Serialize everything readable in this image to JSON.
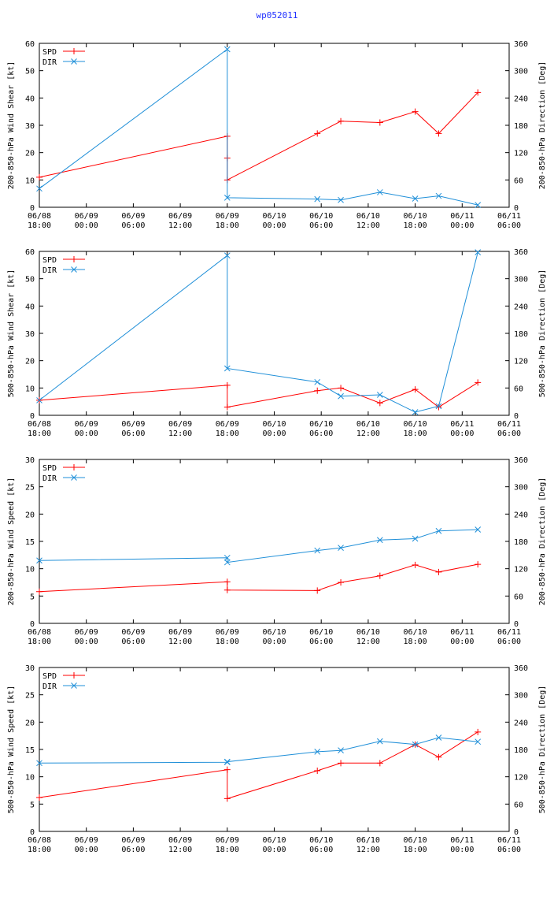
{
  "title": "wp052011",
  "colors": {
    "spd": "#ff0000",
    "dir": "#1f8fd8",
    "axis": "#000000"
  },
  "chart_data": [
    {
      "type": "line",
      "ylabel_left": "200-850-hPa Wind Shear [kt]",
      "ylabel_right": "200-850-hPa Direction [Deg]",
      "ylim_left": [
        0,
        60
      ],
      "yticks_left": [
        "0",
        "10",
        "20",
        "30",
        "40",
        "50",
        "60"
      ],
      "ylim_right": [
        0,
        360
      ],
      "yticks_right": [
        "0",
        "60",
        "120",
        "180",
        "240",
        "300",
        "360"
      ],
      "xlim": [
        0,
        60
      ],
      "xticks": [
        [
          "06/08",
          "18:00"
        ],
        [
          "06/09",
          "00:00"
        ],
        [
          "06/09",
          "06:00"
        ],
        [
          "06/09",
          "12:00"
        ],
        [
          "06/09",
          "18:00"
        ],
        [
          "06/10",
          "00:00"
        ],
        [
          "06/10",
          "06:00"
        ],
        [
          "06/10",
          "12:00"
        ],
        [
          "06/10",
          "18:00"
        ],
        [
          "06/11",
          "00:00"
        ],
        [
          "06/11",
          "06:00"
        ]
      ],
      "legend": [
        "SPD",
        "DIR"
      ],
      "legend_position": "top-left",
      "series": [
        {
          "name": "SPD",
          "axis": "left",
          "x": [
            0,
            24,
            24,
            24,
            35.5,
            38.5,
            43.5,
            48,
            51,
            56
          ],
          "y": [
            11,
            26,
            18,
            10,
            27,
            31.5,
            31,
            35,
            27,
            42
          ]
        },
        {
          "name": "DIR",
          "axis": "right",
          "x": [
            0,
            24,
            24,
            35.5,
            38.5,
            43.5,
            48,
            51,
            56
          ],
          "y": [
            41,
            347,
            21,
            18,
            16,
            33,
            19,
            25,
            5
          ]
        }
      ]
    },
    {
      "type": "line",
      "ylabel_left": "500-850-hPa Wind Shear [kt]",
      "ylabel_right": "500-850-hPa Direction [Deg]",
      "ylim_left": [
        0,
        60
      ],
      "yticks_left": [
        "0",
        "10",
        "20",
        "30",
        "40",
        "50",
        "60"
      ],
      "ylim_right": [
        0,
        360
      ],
      "yticks_right": [
        "0",
        "60",
        "120",
        "180",
        "240",
        "300",
        "360"
      ],
      "xlim": [
        0,
        60
      ],
      "xticks": [
        [
          "06/08",
          "18:00"
        ],
        [
          "06/09",
          "00:00"
        ],
        [
          "06/09",
          "06:00"
        ],
        [
          "06/09",
          "12:00"
        ],
        [
          "06/09",
          "18:00"
        ],
        [
          "06/10",
          "00:00"
        ],
        [
          "06/10",
          "06:00"
        ],
        [
          "06/10",
          "12:00"
        ],
        [
          "06/10",
          "18:00"
        ],
        [
          "06/11",
          "00:00"
        ],
        [
          "06/11",
          "06:00"
        ]
      ],
      "legend": [
        "SPD",
        "DIR"
      ],
      "legend_position": "top-left",
      "series": [
        {
          "name": "SPD",
          "axis": "left",
          "x": [
            0,
            24,
            24,
            35.5,
            38.5,
            43.5,
            48,
            51,
            56
          ],
          "y": [
            5.5,
            11,
            3,
            9,
            10,
            4.5,
            9.5,
            3,
            12
          ]
        },
        {
          "name": "DIR",
          "axis": "right",
          "x": [
            0,
            24,
            24,
            35.5,
            38.5,
            43.5,
            48,
            51,
            56
          ],
          "y": [
            33,
            351,
            103,
            73,
            42,
            45,
            7,
            20,
            358
          ]
        }
      ]
    },
    {
      "type": "line",
      "ylabel_left": "200-850-hPa Wind Speed [kt]",
      "ylabel_right": "200-850-hPa Direction [Deg]",
      "ylim_left": [
        0,
        30
      ],
      "yticks_left": [
        "0",
        "5",
        "10",
        "15",
        "20",
        "25",
        "30"
      ],
      "ylim_right": [
        0,
        360
      ],
      "yticks_right": [
        "0",
        "60",
        "120",
        "180",
        "240",
        "300",
        "360"
      ],
      "xlim": [
        0,
        60
      ],
      "xticks": [
        [
          "06/08",
          "18:00"
        ],
        [
          "06/09",
          "00:00"
        ],
        [
          "06/09",
          "06:00"
        ],
        [
          "06/09",
          "12:00"
        ],
        [
          "06/09",
          "18:00"
        ],
        [
          "06/10",
          "00:00"
        ],
        [
          "06/10",
          "06:00"
        ],
        [
          "06/10",
          "12:00"
        ],
        [
          "06/10",
          "18:00"
        ],
        [
          "06/11",
          "00:00"
        ],
        [
          "06/11",
          "06:00"
        ]
      ],
      "legend": [
        "SPD",
        "DIR"
      ],
      "legend_position": "top-left",
      "series": [
        {
          "name": "SPD",
          "axis": "left",
          "x": [
            0,
            24,
            24,
            35.5,
            38.5,
            43.5,
            48,
            51,
            56
          ],
          "y": [
            5.8,
            7.6,
            6.1,
            6.0,
            7.5,
            8.7,
            10.7,
            9.4,
            10.8
          ]
        },
        {
          "name": "DIR",
          "axis": "right",
          "x": [
            0,
            24,
            24,
            35.5,
            38.5,
            43.5,
            48,
            51,
            56
          ],
          "y": [
            138,
            144,
            134,
            160,
            166,
            183,
            186,
            203,
            206
          ]
        }
      ]
    },
    {
      "type": "line",
      "ylabel_left": "500-850-hPa Wind Speed [kt]",
      "ylabel_right": "500-850-hPa Direction [Deg]",
      "ylim_left": [
        0,
        30
      ],
      "yticks_left": [
        "0",
        "5",
        "10",
        "15",
        "20",
        "25",
        "30"
      ],
      "ylim_right": [
        0,
        360
      ],
      "yticks_right": [
        "0",
        "60",
        "120",
        "180",
        "240",
        "300",
        "360"
      ],
      "xlim": [
        0,
        60
      ],
      "xticks": [
        [
          "06/08",
          "18:00"
        ],
        [
          "06/09",
          "00:00"
        ],
        [
          "06/09",
          "06:00"
        ],
        [
          "06/09",
          "12:00"
        ],
        [
          "06/09",
          "18:00"
        ],
        [
          "06/10",
          "00:00"
        ],
        [
          "06/10",
          "06:00"
        ],
        [
          "06/10",
          "12:00"
        ],
        [
          "06/10",
          "18:00"
        ],
        [
          "06/11",
          "00:00"
        ],
        [
          "06/11",
          "06:00"
        ]
      ],
      "legend": [
        "SPD",
        "DIR"
      ],
      "legend_position": "top-left",
      "series": [
        {
          "name": "SPD",
          "axis": "left",
          "x": [
            0,
            24,
            24,
            35.5,
            38.5,
            43.5,
            48,
            51,
            56
          ],
          "y": [
            6.2,
            11.3,
            6.0,
            11.1,
            12.5,
            12.5,
            15.9,
            13.6,
            18.2
          ]
        },
        {
          "name": "DIR",
          "axis": "right",
          "x": [
            0,
            24,
            24,
            35.5,
            38.5,
            43.5,
            48,
            51,
            56
          ],
          "y": [
            150,
            152,
            153,
            175,
            178,
            198,
            191,
            206,
            197
          ]
        }
      ]
    }
  ]
}
